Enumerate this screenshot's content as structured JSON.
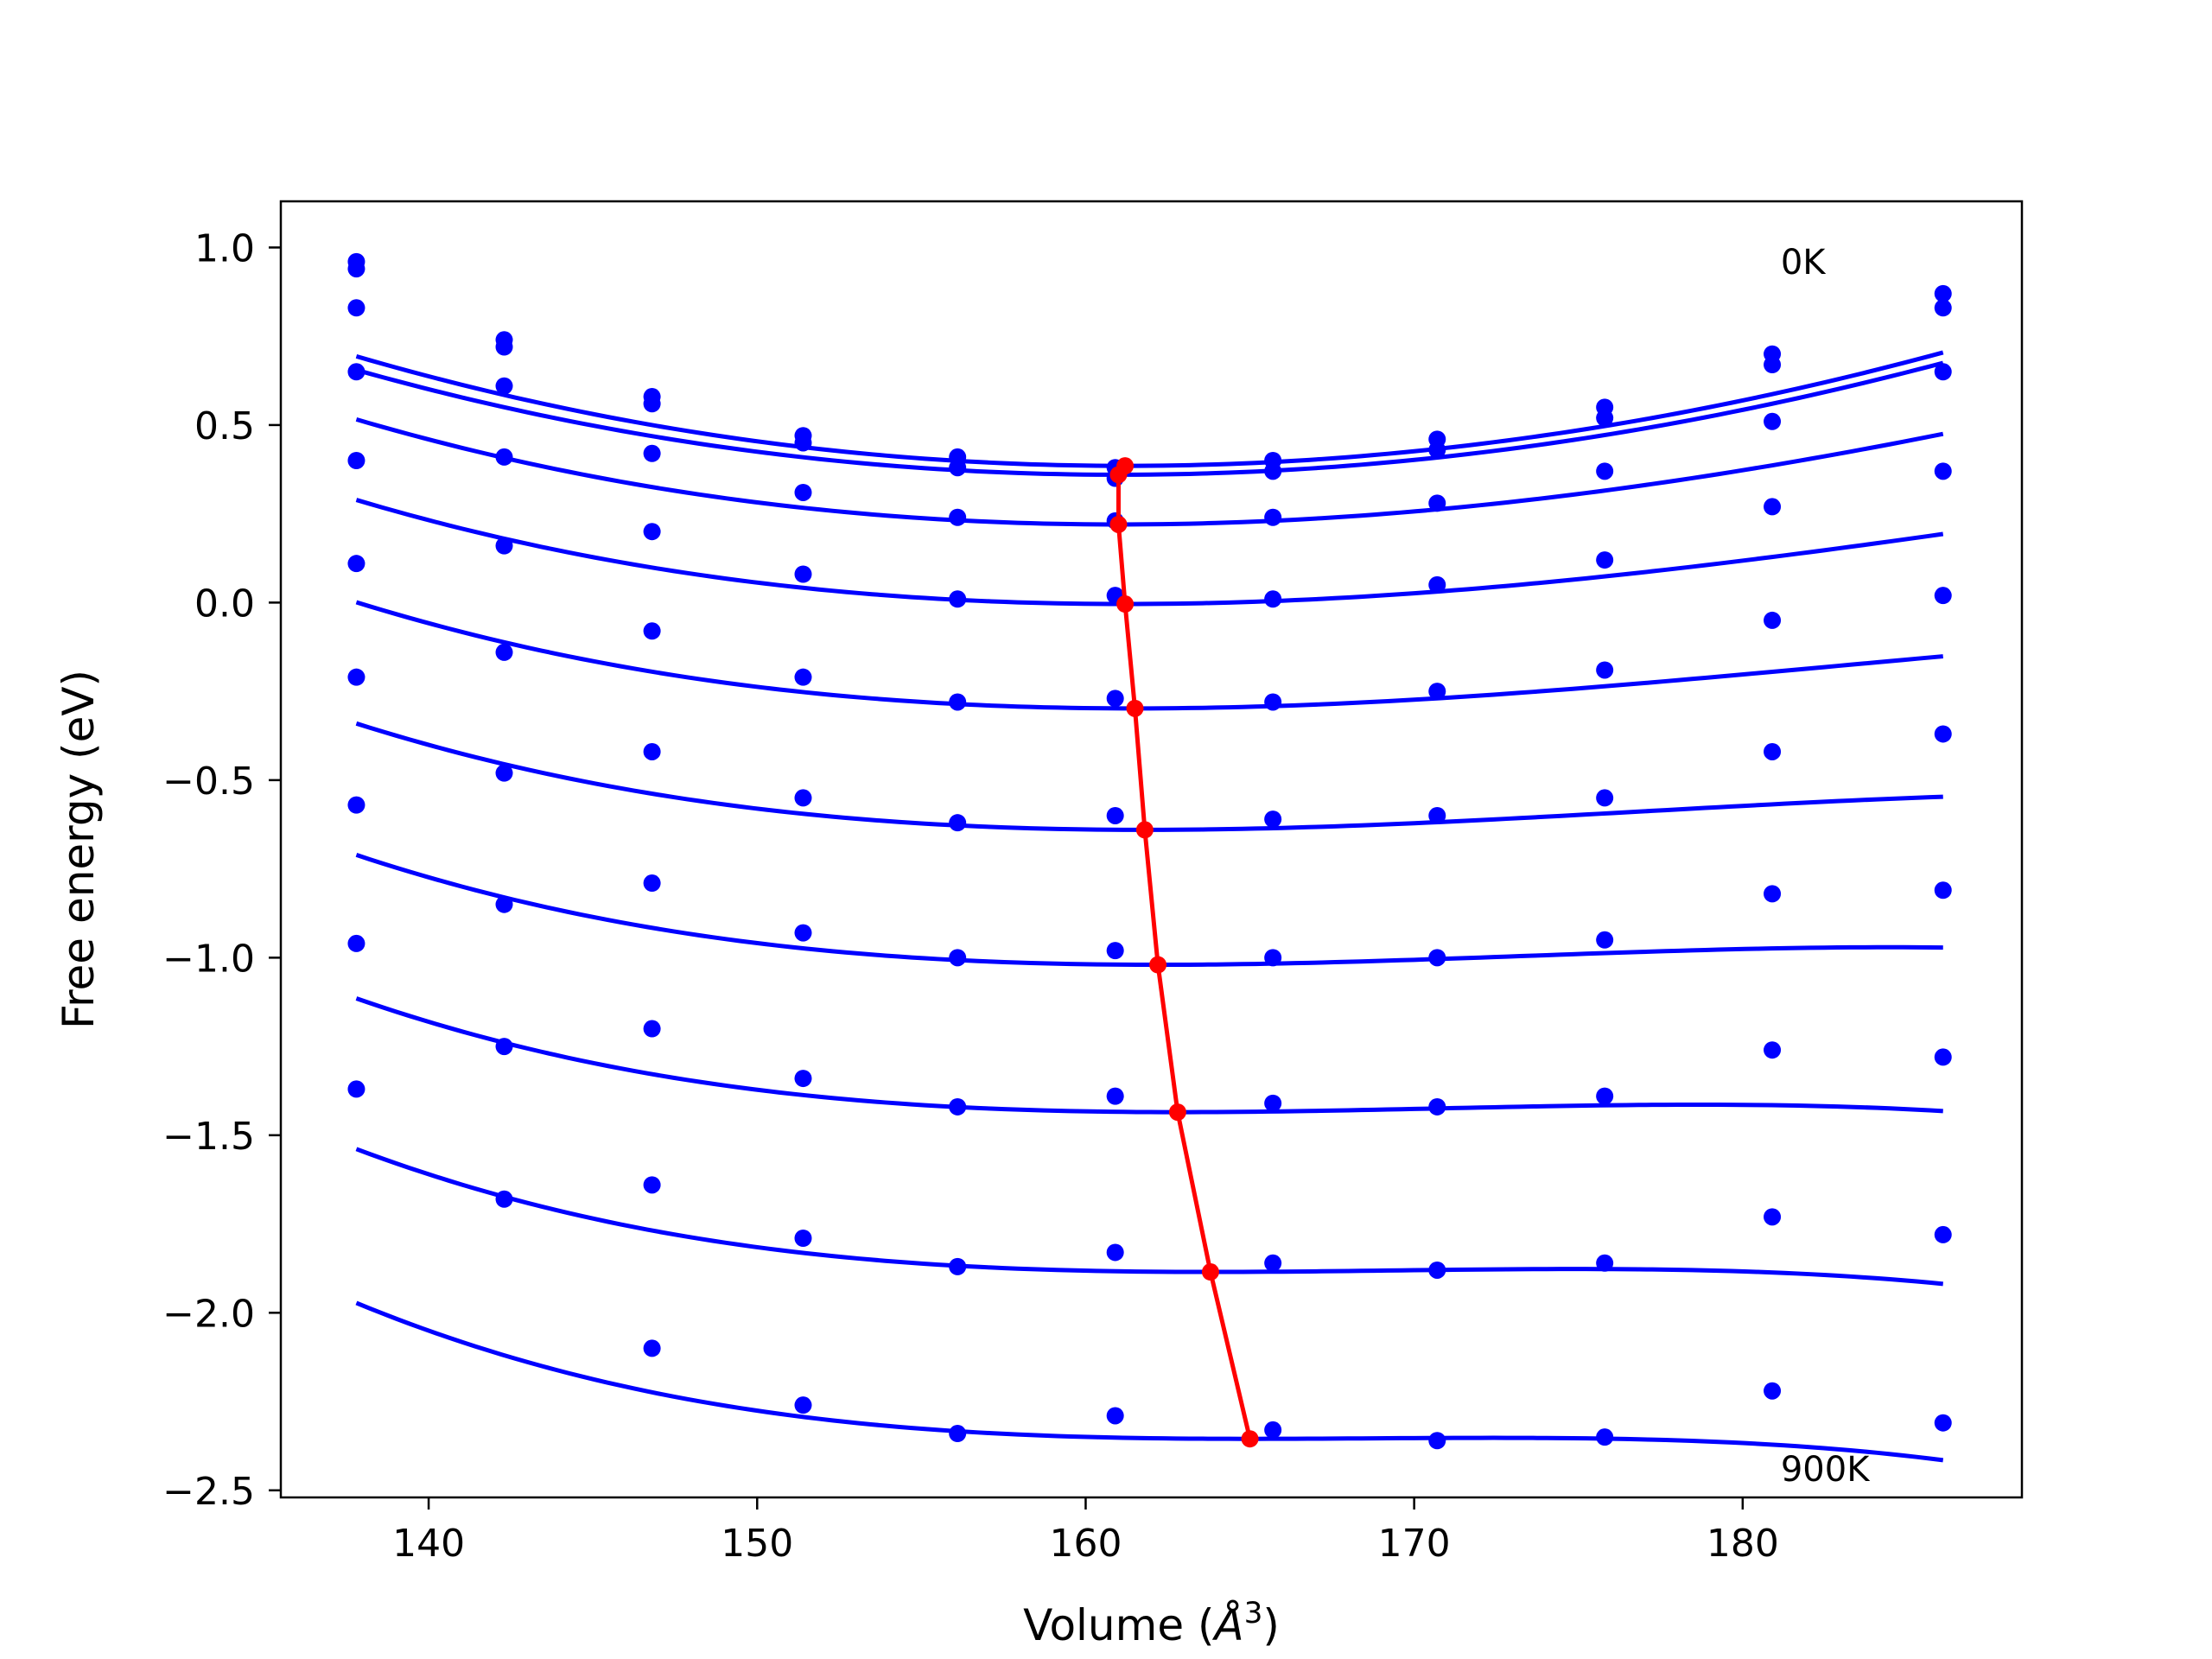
{
  "chart_data": {
    "type": "line",
    "xlabel": "Volume (",
    "xlabel_unit": "Å",
    "xlabel_exp": "3",
    "xlabel_close": ")",
    "ylabel": "Free energy (eV)",
    "xlim": [
      135.5,
      188.5
    ],
    "ylim": [
      -2.52,
      1.13
    ],
    "xticks": [
      140,
      150,
      160,
      170,
      180
    ],
    "xtick_labels": [
      "140",
      "150",
      "160",
      "170",
      "180"
    ],
    "yticks": [
      1.0,
      0.5,
      0.0,
      -0.5,
      -1.0,
      -1.5,
      -2.0,
      -2.5
    ],
    "ytick_labels": [
      "1.0",
      "0.5",
      "0.0",
      "−0.5",
      "−1.0",
      "−1.5",
      "−2.0",
      "−2.5"
    ],
    "grid": false,
    "annotations": [
      {
        "text": "0K",
        "x": 181.0,
        "y": 0.96
      },
      {
        "text": "900K",
        "x": 181.0,
        "y": -2.44
      }
    ],
    "x": [
      137.8,
      142.3,
      146.8,
      151.4,
      156.1,
      160.9,
      165.7,
      170.7,
      175.8,
      180.9,
      186.1
    ],
    "series": [
      {
        "color": "#0000ff",
        "fit": {
          "F0": 0.385,
          "V0": 161.2,
          "a": 0.00054,
          "b": 1e-06
        },
        "points": [
          0.96,
          0.74,
          0.58,
          0.47,
          0.41,
          0.38,
          0.4,
          0.46,
          0.55,
          0.7,
          0.87
        ]
      },
      {
        "color": "#0000ff",
        "fit": {
          "F0": 0.36,
          "V0": 161.0,
          "a": 0.000525,
          "b": 1e-06
        },
        "points": [
          0.94,
          0.72,
          0.56,
          0.45,
          0.38,
          0.35,
          0.37,
          0.43,
          0.52,
          0.67,
          0.83
        ]
      },
      {
        "color": "#0000ff",
        "fit": {
          "F0": 0.22,
          "V0": 161.0,
          "a": 0.00048,
          "b": 3e-06
        },
        "points": [
          0.83,
          0.61,
          0.42,
          0.31,
          0.24,
          0.23,
          0.24,
          0.28,
          0.37,
          0.51,
          0.65
        ]
      },
      {
        "color": "#0000ff",
        "fit": {
          "F0": -0.004,
          "V0": 161.2,
          "a": 0.00043,
          "b": 4.5e-06
        },
        "points": [
          0.65,
          0.41,
          0.2,
          0.08,
          0.01,
          0.02,
          0.01,
          0.05,
          0.12,
          0.27,
          0.37
        ]
      },
      {
        "color": "#0000ff",
        "fit": {
          "F0": -0.298,
          "V0": 161.5,
          "a": 0.00039,
          "b": 6e-06
        },
        "points": [
          0.4,
          0.16,
          -0.08,
          -0.21,
          -0.28,
          -0.27,
          -0.28,
          -0.25,
          -0.19,
          -0.05,
          0.02
        ]
      },
      {
        "color": "#0000ff",
        "fit": {
          "F0": -0.64,
          "V0": 161.8,
          "a": 0.00034,
          "b": 7.5e-06
        },
        "points": [
          0.11,
          -0.14,
          -0.42,
          -0.55,
          -0.62,
          -0.6,
          -0.61,
          -0.6,
          -0.55,
          -0.42,
          -0.37
        ]
      },
      {
        "color": "#0000ff",
        "fit": {
          "F0": -1.02,
          "V0": 162.2,
          "a": 0.0003,
          "b": 9e-06
        },
        "points": [
          -0.21,
          -0.48,
          -0.79,
          -0.93,
          -1.0,
          -0.98,
          -1.0,
          -1.0,
          -0.95,
          -0.82,
          -0.81
        ]
      },
      {
        "color": "#0000ff",
        "fit": {
          "F0": -1.435,
          "V0": 162.8,
          "a": 0.00025,
          "b": 1.05e-05
        },
        "points": [
          -0.57,
          -0.85,
          -1.2,
          -1.34,
          -1.42,
          -1.39,
          -1.41,
          -1.42,
          -1.39,
          -1.26,
          -1.28
        ]
      },
      {
        "color": "#0000ff",
        "fit": {
          "F0": -1.885,
          "V0": 163.8,
          "a": 0.0002,
          "b": 1.2e-05
        },
        "points": [
          -0.96,
          -1.25,
          -1.64,
          -1.79,
          -1.87,
          -1.83,
          -1.86,
          -1.88,
          -1.86,
          -1.73,
          -1.78
        ]
      },
      {
        "color": "#0000ff",
        "fit": {
          "F0": -2.355,
          "V0": 165.0,
          "a": 0.00015,
          "b": 1.35e-05
        },
        "points": [
          -1.37,
          -1.68,
          -2.1,
          -2.26,
          -2.34,
          -2.29,
          -2.33,
          -2.36,
          -2.35,
          -2.22,
          -2.31
        ]
      }
    ],
    "minima": {
      "color": "#ff0000",
      "x": [
        161.2,
        161.0,
        161.0,
        161.2,
        161.5,
        161.8,
        162.2,
        162.8,
        163.8,
        165.0
      ],
      "y": [
        0.385,
        0.36,
        0.22,
        -0.004,
        -0.298,
        -0.64,
        -1.02,
        -1.435,
        -1.885,
        -2.355
      ]
    }
  }
}
